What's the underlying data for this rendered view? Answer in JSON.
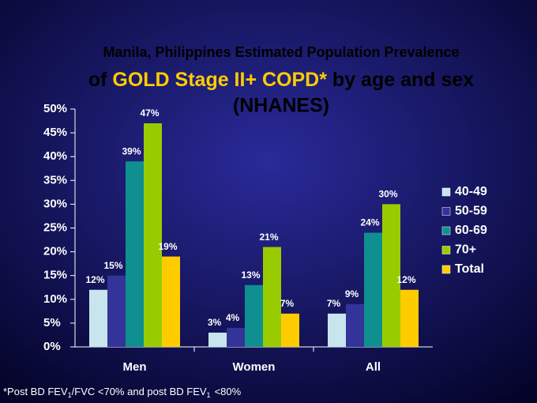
{
  "chart_data": {
    "type": "bar",
    "title": "Manila, Philippines Estimated Population Prevalence",
    "subtitle": [
      "of",
      "GOLD Stage II+ COPD*",
      "by age and sex",
      "(NHANES)"
    ],
    "categories": [
      "Men",
      "Women",
      "All"
    ],
    "series": [
      {
        "name": "40-49",
        "color": "#c8e4ec",
        "values": [
          12,
          3,
          7
        ],
        "value_labels": [
          "12%",
          "3%",
          "7%"
        ]
      },
      {
        "name": "50-59",
        "color": "#333399",
        "values": [
          15,
          4,
          9
        ],
        "value_labels": [
          "15%",
          "4%",
          "9%"
        ]
      },
      {
        "name": "60-69",
        "color": "#0f8f8f",
        "values": [
          39,
          13,
          24
        ],
        "value_labels": [
          "39%",
          "13%",
          "24%"
        ]
      },
      {
        "name": "70+",
        "color": "#99cc00",
        "values": [
          47,
          21,
          30
        ],
        "value_labels": [
          "47%",
          "21%",
          "30%"
        ]
      },
      {
        "name": "Total",
        "color": "#ffcc00",
        "values": [
          19,
          7,
          12
        ],
        "value_labels": [
          "19%",
          "7%",
          "12%"
        ]
      }
    ],
    "ylim": [
      0,
      50
    ],
    "yticks": [
      {
        "value": 0,
        "label": "0%"
      },
      {
        "value": 5,
        "label": "5%"
      },
      {
        "value": 10,
        "label": "10%"
      },
      {
        "value": 15,
        "label": "15%"
      },
      {
        "value": 20,
        "label": "20%"
      },
      {
        "value": 25,
        "label": "25%"
      },
      {
        "value": 30,
        "label": "30%"
      },
      {
        "value": 35,
        "label": "35%"
      },
      {
        "value": 40,
        "label": "40%"
      },
      {
        "value": 45,
        "label": "45%"
      },
      {
        "value": 50,
        "label": "50%"
      }
    ],
    "footnote": [
      "*Post BD FEV",
      "1",
      "/FVC <70% and post BD FEV",
      "1",
      "<80%"
    ]
  }
}
